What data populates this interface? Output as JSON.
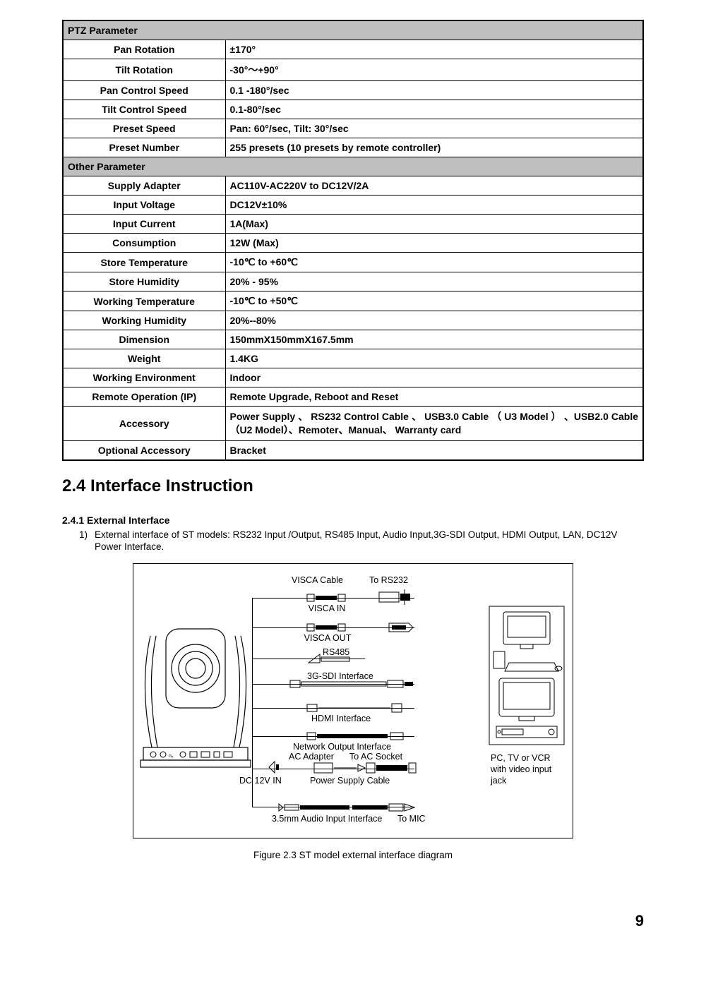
{
  "table": {
    "sections": [
      {
        "header": "PTZ Parameter",
        "rows": [
          {
            "label": "Pan Rotation",
            "value": "±170°"
          },
          {
            "label": "Tilt Rotation",
            "value": "-30°～+90°"
          },
          {
            "label": "Pan Control Speed",
            "value": "0.1 -180°/sec"
          },
          {
            "label": "Tilt Control Speed",
            "value": "0.1-80°/sec"
          },
          {
            "label": "Preset Speed",
            "value": "Pan: 60°/sec, Tilt: 30°/sec"
          },
          {
            "label": "Preset Number",
            "value": "255 presets (10 presets by remote controller)"
          }
        ]
      },
      {
        "header": "Other Parameter",
        "rows": [
          {
            "label": "Supply Adapter",
            "value": "AC110V-AC220V to DC12V/2A"
          },
          {
            "label": "Input Voltage",
            "value": "DC12V±10%"
          },
          {
            "label": "Input Current",
            "value": "1A(Max)"
          },
          {
            "label": "Consumption",
            "value": "12W (Max)"
          },
          {
            "label": "Store Temperature",
            "value": "-10℃ to +60℃"
          },
          {
            "label": "Store Humidity",
            "value": "20% - 95%"
          },
          {
            "label": "Working Temperature",
            "value": "-10℃ to +50℃"
          },
          {
            "label": "Working Humidity",
            "value": "20%--80%"
          },
          {
            "label": "Dimension",
            "value": "150mmX150mmX167.5mm"
          },
          {
            "label": "Weight",
            "value": "1.4KG"
          },
          {
            "label": "Working Environment",
            "value": "Indoor"
          },
          {
            "label": "Remote Operation (IP)",
            "value": "Remote Upgrade, Reboot and Reset"
          },
          {
            "label": "Accessory",
            "value": "Power Supply 、 RS232 Control Cable 、 USB3.0 Cable （ U3 Model ） 、USB2.0 Cable（U2 Model）、Remoter、Manual、 Warranty card",
            "tall": true
          },
          {
            "label": "Optional Accessory",
            "value": "Bracket"
          }
        ]
      }
    ]
  },
  "heading": "2.4 Interface Instruction",
  "subsection": "2.4.1 External Interface",
  "list_item_num": "1)",
  "list_item_text": "External interface of ST models: RS232 Input /Output, RS485 Input, Audio Input,3G-SDI Output, HDMI Output, LAN, DC12V Power Interface.",
  "figure_caption": "Figure 2.3 ST model external interface diagram",
  "page_number": "9",
  "diagram": {
    "labels": {
      "visca_cable": "VISCA Cable",
      "to_rs232": "To RS232",
      "visca_in": "VISCA IN",
      "visca_out": "VISCA OUT",
      "rs485": "RS485",
      "sdi": "3G-SDI Interface",
      "hdmi": "HDMI Interface",
      "network": "Network Output Interface",
      "ac_adapter": "AC Adapter",
      "to_ac_socket": "To AC Socket",
      "dc12vin": "DC 12V IN",
      "power_cable": "Power Supply Cable",
      "audio": "3.5mm Audio Input Interface",
      "to_mic": "To MIC",
      "pc_tv": "PC, TV or VCR",
      "with_video": "with video input",
      "jack": "jack"
    }
  }
}
